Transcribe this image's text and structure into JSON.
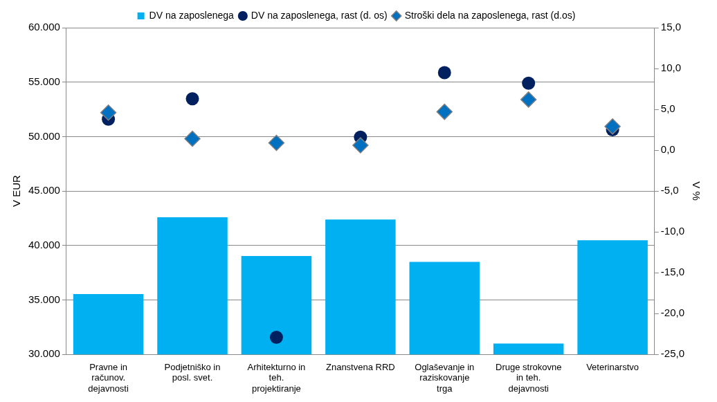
{
  "chart_data": {
    "type": "bar",
    "categories": [
      "Pravne in računov. dejavnosti",
      "Podjetniško in posl. svet.",
      "Arhitekturno in teh. projektiranje",
      "Znanstvena RRD",
      "Oglaševanje in raziskovanje trga",
      "Druge strokovne in teh. dejavnosti",
      "Veterinarstvo"
    ],
    "series": [
      {
        "name": "DV na zaposlenega",
        "color": "#00b0f0",
        "values": [
          35540,
          42590,
          39030,
          42390,
          38500,
          30990,
          40480
        ]
      },
      {
        "name": "DV na zaposlenega, rast (d. os)",
        "type": "scatter",
        "axis": "y2",
        "marker": "circle",
        "color": "#002060",
        "values": [
          3.8,
          6.3,
          -22.9,
          1.6,
          9.5,
          8.2,
          2.5
        ]
      },
      {
        "name": "Stroški dela na zaposlenega, rast (d.os)",
        "type": "scatter",
        "axis": "y2",
        "marker": "diamond",
        "color": "#0070c0",
        "values": [
          4.6,
          1.4,
          0.9,
          0.6,
          4.7,
          6.2,
          2.9
        ]
      }
    ],
    "ylabel": "V EUR",
    "y2label": "V %",
    "ylim": [
      30000,
      60000
    ],
    "yticks": [
      {
        "value": 30000,
        "label": "30.000"
      },
      {
        "value": 35000,
        "label": "35.000"
      },
      {
        "value": 40000,
        "label": "40.000"
      },
      {
        "value": 45000,
        "label": "45.000"
      },
      {
        "value": 50000,
        "label": "50.000"
      },
      {
        "value": 55000,
        "label": "55.000"
      },
      {
        "value": 60000,
        "label": "60.000"
      }
    ],
    "y2lim": [
      -25,
      15
    ],
    "y2ticks": [
      {
        "value": -25,
        "label": "-25,0"
      },
      {
        "value": -20,
        "label": "-20,0"
      },
      {
        "value": -15,
        "label": "-15,0"
      },
      {
        "value": -10,
        "label": "-10,0"
      },
      {
        "value": -5,
        "label": "-5,0"
      },
      {
        "value": 0,
        "label": "0,0"
      },
      {
        "value": 5,
        "label": "5,0"
      },
      {
        "value": 10,
        "label": "10,0"
      },
      {
        "value": 15,
        "label": "15,0"
      }
    ],
    "grid": "y",
    "legend": "top"
  }
}
